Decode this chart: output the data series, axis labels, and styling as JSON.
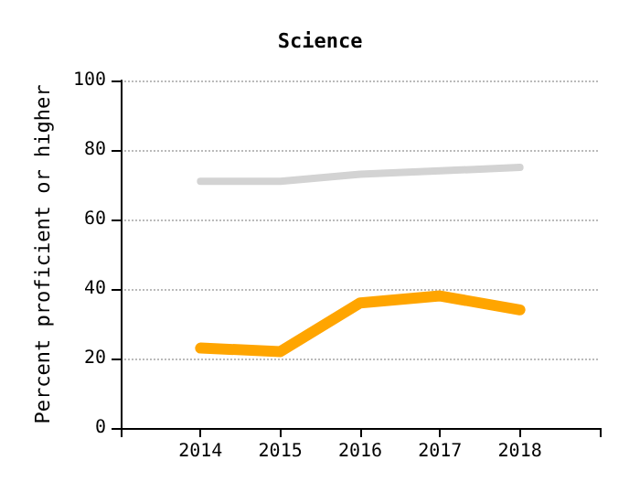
{
  "chart_data": {
    "type": "line",
    "title": "Science",
    "ylabel": "Percent proficient or higher",
    "x": [
      2014,
      2015,
      2016,
      2017,
      2018
    ],
    "series": [
      {
        "color": "#d3d3d3",
        "values": [
          71,
          71,
          73,
          74,
          75
        ]
      },
      {
        "color": "#ffa500",
        "values": [
          23,
          22,
          36,
          38,
          34
        ]
      }
    ],
    "xlim": [
      2013,
      2019
    ],
    "xticks": [
      {
        "value": 2013,
        "label": null
      },
      2014,
      2015,
      2016,
      2017,
      2018,
      {
        "value": 2019,
        "label": null
      }
    ],
    "ylim": [
      0,
      100
    ],
    "yticks": [
      0,
      20,
      40,
      60,
      80,
      100
    ],
    "grid": "y",
    "marker": "none",
    "line_style": "solid"
  }
}
